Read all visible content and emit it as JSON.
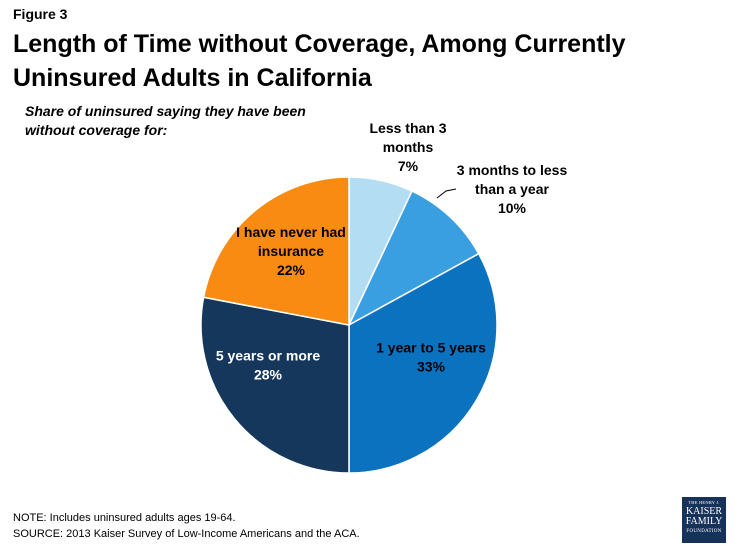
{
  "figure_label": "Figure 3",
  "title": "Length of Time without Coverage, Among Currently Uninsured Adults in California",
  "subtitle": "Share of uninsured saying they have been without coverage for:",
  "chart_data": {
    "type": "pie",
    "start_angle_deg": 0,
    "direction": "clockwise",
    "slices": [
      {
        "label_lines": [
          "Less than 3",
          "months"
        ],
        "value_label": "7%",
        "value": 7,
        "color": "#b3ddf2"
      },
      {
        "label_lines": [
          "3 months to less",
          "than a year"
        ],
        "value_label": "10%",
        "value": 10,
        "color": "#3a9fe0"
      },
      {
        "label_lines": [
          "1 year to 5 years"
        ],
        "value_label": "33%",
        "value": 33,
        "color": "#0b72bf"
      },
      {
        "label_lines": [
          "5 years or more"
        ],
        "value_label": "28%",
        "value": 28,
        "color": "#16375c"
      },
      {
        "label_lines": [
          "I have never had",
          "insurance"
        ],
        "value_label": "22%",
        "value": 22,
        "color": "#f98b12"
      }
    ]
  },
  "note": "NOTE: Includes uninsured adults ages 19-64.",
  "source": "SOURCE: 2013 Kaiser Survey of Low-Income Americans and the ACA.",
  "logo": {
    "line1": "THE HENRY J.",
    "line2": "KAISER",
    "line3": "FAMILY",
    "line4": "FOUNDATION"
  }
}
